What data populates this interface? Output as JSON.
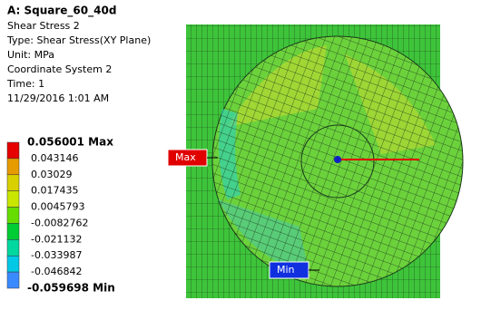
{
  "header": {
    "title": "A: Square_60_40d",
    "lines": [
      "Shear Stress 2",
      "Type: Shear Stress(XY Plane)",
      "Unit: MPa",
      "Coordinate System 2",
      "Time: 1",
      "11/29/2016 1:01 AM"
    ]
  },
  "legend": {
    "labels": [
      "0.056001 Max",
      "0.043146",
      "0.03029",
      "0.017435",
      "0.0045793",
      "-0.0082762",
      "-0.021132",
      "-0.033987",
      "-0.046842",
      "-0.059698 Min"
    ],
    "colors": [
      "#e60000",
      "#e69b00",
      "#d8d000",
      "#c8e600",
      "#66dd00",
      "#00cc33",
      "#00d8a0",
      "#00c8e6",
      "#3a8aff",
      "#0000e6"
    ]
  },
  "tags": {
    "max": "Max",
    "min": "Min"
  }
}
